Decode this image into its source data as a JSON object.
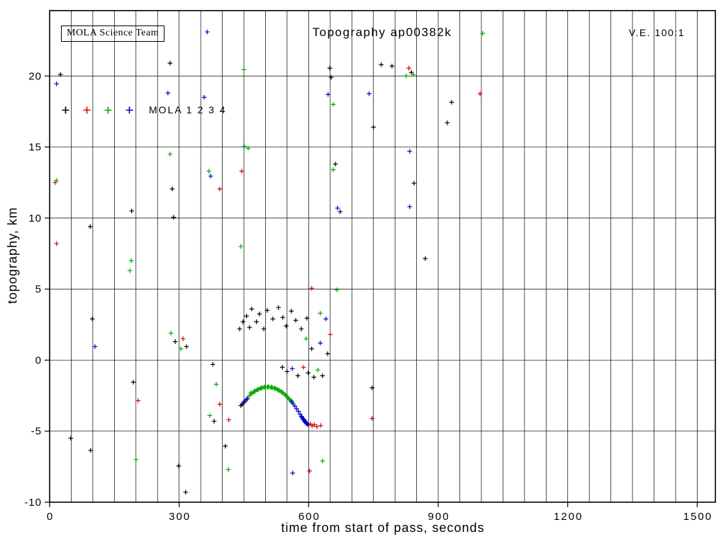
{
  "annotations": {
    "team_box": "MOLA Science Team",
    "ve": "V.E. 100:1"
  },
  "legend": {
    "label": "MOLA 1 2 3 4"
  },
  "chart_data": {
    "type": "scatter",
    "title": "Topography ap00382k",
    "xlabel": "time from start of pass, seconds",
    "ylabel": "topography, km",
    "xlim": [
      0,
      1542
    ],
    "ylim": [
      -10,
      24.6
    ],
    "x_major_ticks": [
      0,
      300,
      600,
      900,
      1200,
      1500
    ],
    "x_grid_interval": 50,
    "y_major_ticks": [
      -10,
      -5,
      0,
      5,
      10,
      15,
      20
    ],
    "y_grid_interval": 5,
    "grid": true,
    "marker": "+",
    "legend_position": "top-left-inside",
    "series": [
      {
        "name": "MOLA 1",
        "color": "#000000",
        "points": [
          [
            25,
            20.1
          ],
          [
            49,
            -5.5
          ],
          [
            94,
            9.4
          ],
          [
            95,
            -6.35
          ],
          [
            99,
            2.9
          ],
          [
            190,
            10.5
          ],
          [
            194,
            -1.55
          ],
          [
            279,
            20.9
          ],
          [
            284,
            12.05
          ],
          [
            287,
            10.05
          ],
          [
            291,
            1.3
          ],
          [
            299,
            -7.45
          ],
          [
            315,
            -9.3
          ],
          [
            317,
            0.95
          ],
          [
            378,
            -0.3
          ],
          [
            381,
            -4.3
          ],
          [
            407,
            -6.05
          ],
          [
            440,
            2.2
          ],
          [
            443,
            -3.2
          ],
          [
            446,
            -3.1
          ],
          [
            448,
            2.7
          ],
          [
            452,
            -2.9
          ],
          [
            456,
            3.1
          ],
          [
            463,
            2.3
          ],
          [
            468,
            3.6
          ],
          [
            479,
            2.7
          ],
          [
            486,
            3.25
          ],
          [
            496,
            2.2
          ],
          [
            504,
            3.5
          ],
          [
            517,
            2.9
          ],
          [
            530,
            3.7
          ],
          [
            539,
            -0.5
          ],
          [
            540,
            3.0
          ],
          [
            548,
            2.4
          ],
          [
            550,
            -0.8
          ],
          [
            560,
            3.45
          ],
          [
            570,
            2.8
          ],
          [
            575,
            -1.1
          ],
          [
            583,
            2.2
          ],
          [
            596,
            2.95
          ],
          [
            599,
            -0.9
          ],
          [
            607,
            0.8
          ],
          [
            612,
            -1.2
          ],
          [
            632,
            -1.1
          ],
          [
            644,
            0.45
          ],
          [
            649,
            20.55
          ],
          [
            652,
            19.9
          ],
          [
            662,
            13.8
          ],
          [
            673,
            10.45
          ],
          [
            747,
            -1.95
          ],
          [
            750,
            16.4
          ],
          [
            768,
            20.8
          ],
          [
            793,
            20.7
          ],
          [
            838,
            20.25
          ],
          [
            844,
            12.45
          ],
          [
            870,
            7.15
          ],
          [
            921,
            16.7
          ],
          [
            931,
            18.15
          ]
        ]
      },
      {
        "name": "MOLA 2",
        "color": "#dd0000",
        "points": [
          [
            13,
            12.5
          ],
          [
            16,
            8.2
          ],
          [
            205,
            -2.85
          ],
          [
            309,
            1.5
          ],
          [
            394,
            12.05
          ],
          [
            394,
            -3.1
          ],
          [
            415,
            -4.2
          ],
          [
            445,
            13.3
          ],
          [
            588,
            -0.5
          ],
          [
            600,
            -4.55
          ],
          [
            602,
            -7.8
          ],
          [
            604,
            -4.5
          ],
          [
            607,
            5.05
          ],
          [
            608,
            -4.62
          ],
          [
            613,
            -4.55
          ],
          [
            619,
            -4.68
          ],
          [
            628,
            -4.6
          ],
          [
            650,
            1.8
          ],
          [
            747,
            -4.1
          ],
          [
            832,
            20.55
          ],
          [
            997,
            18.75
          ]
        ]
      },
      {
        "name": "MOLA 3",
        "color": "#00aa00",
        "points": [
          [
            16,
            12.65
          ],
          [
            186,
            6.3
          ],
          [
            189,
            7.0
          ],
          [
            200,
            -7.0
          ],
          [
            279,
            14.5
          ],
          [
            281,
            1.9
          ],
          [
            304,
            0.8
          ],
          [
            369,
            13.3
          ],
          [
            371,
            -3.9
          ],
          [
            386,
            -1.7
          ],
          [
            414,
            -7.7
          ],
          [
            443,
            8.0
          ],
          [
            450,
            20.45
          ],
          [
            451,
            15.05
          ],
          [
            460,
            14.9
          ],
          [
            594,
            1.5
          ],
          [
            621,
            -0.7
          ],
          [
            627,
            3.3
          ],
          [
            632,
            -7.1
          ],
          [
            657,
            18.0
          ],
          [
            657,
            13.4
          ],
          [
            665,
            4.95
          ],
          [
            826,
            20.0
          ],
          [
            842,
            20.1
          ],
          [
            1003,
            23.0
          ],
          [
            460,
            -2.58
          ],
          [
            464,
            -2.47
          ],
          [
            466,
            -2.3
          ],
          [
            468,
            -2.36
          ],
          [
            472,
            -2.27
          ],
          [
            474,
            -2.2
          ],
          [
            476,
            -2.18
          ],
          [
            480,
            -2.11
          ],
          [
            482,
            -2.06
          ],
          [
            484,
            -2.05
          ],
          [
            488,
            -2.0
          ],
          [
            490,
            -1.95
          ],
          [
            492,
            -1.96
          ],
          [
            496,
            -1.93
          ],
          [
            498,
            -1.89
          ],
          [
            500,
            -1.91
          ],
          [
            504,
            -1.9
          ],
          [
            506,
            -1.87
          ],
          [
            508,
            -1.9
          ],
          [
            512,
            -1.92
          ],
          [
            514,
            -1.9
          ],
          [
            516,
            -1.94
          ],
          [
            520,
            -1.98
          ],
          [
            522,
            -1.97
          ],
          [
            524,
            -2.02
          ],
          [
            528,
            -2.08
          ],
          [
            530,
            -2.09
          ],
          [
            532,
            -2.15
          ],
          [
            536,
            -2.22
          ],
          [
            538,
            -2.24
          ],
          [
            540,
            -2.31
          ],
          [
            544,
            -2.41
          ],
          [
            546,
            -2.44
          ],
          [
            548,
            -2.53
          ],
          [
            552,
            -2.65
          ],
          [
            554,
            -2.7
          ],
          [
            556,
            -2.78
          ],
          [
            559,
            -2.85
          ],
          [
            562,
            -2.95
          ]
        ]
      },
      {
        "name": "MOLA 4",
        "color": "#0000cc",
        "points": [
          [
            16,
            19.45
          ],
          [
            105,
            0.95
          ],
          [
            274,
            18.8
          ],
          [
            358,
            18.5
          ],
          [
            365,
            23.1
          ],
          [
            373,
            12.95
          ],
          [
            562,
            -0.6
          ],
          [
            563,
            -7.95
          ],
          [
            627,
            1.2
          ],
          [
            640,
            2.9
          ],
          [
            645,
            18.7
          ],
          [
            667,
            10.7
          ],
          [
            740,
            18.75
          ],
          [
            834,
            14.7
          ],
          [
            834,
            10.8
          ],
          [
            449,
            -3.0
          ],
          [
            455,
            -2.8
          ],
          [
            458,
            -2.72
          ],
          [
            560,
            -2.92
          ],
          [
            564,
            -3.08
          ],
          [
            568,
            -3.24
          ],
          [
            572,
            -3.42
          ],
          [
            576,
            -3.6
          ],
          [
            580,
            -3.8
          ],
          [
            583,
            -3.95
          ],
          [
            584,
            -4.0
          ],
          [
            586,
            -4.1
          ],
          [
            587,
            -4.15
          ],
          [
            589,
            -4.2
          ],
          [
            590,
            -4.25
          ],
          [
            591,
            -4.3
          ],
          [
            592,
            -4.35
          ],
          [
            593,
            -4.38
          ],
          [
            594,
            -4.42
          ],
          [
            595,
            -4.45
          ],
          [
            596,
            -4.48
          ],
          [
            597,
            -4.5
          ],
          [
            598,
            -4.52
          ]
        ]
      }
    ]
  }
}
